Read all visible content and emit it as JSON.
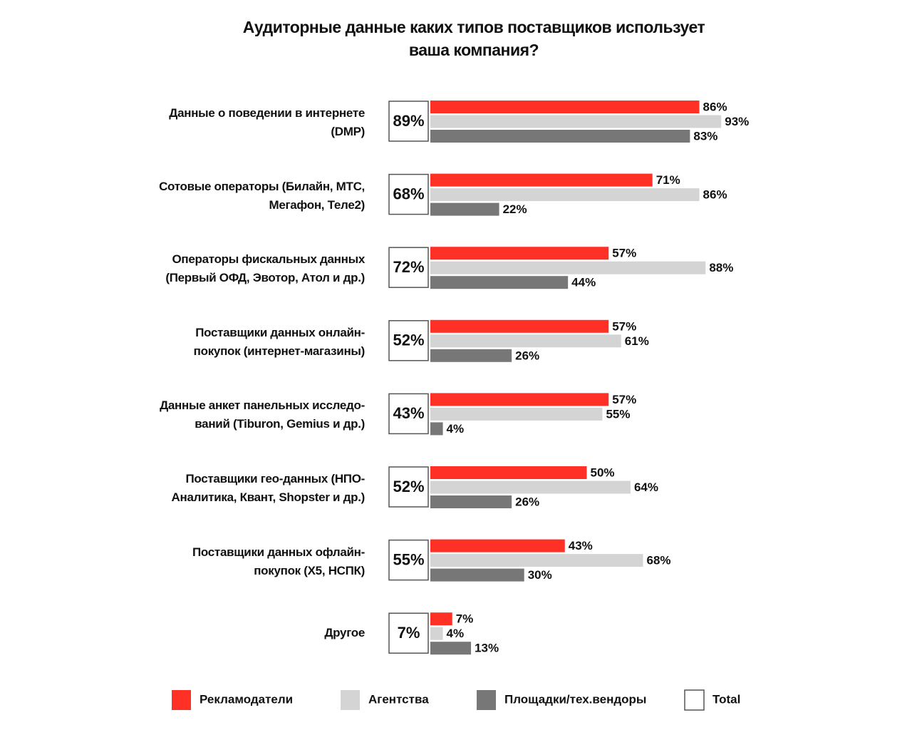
{
  "chart_data": {
    "type": "grouped-hbar",
    "title": "Аудиторные данные каких типов поставщиков использует\nваша компания?",
    "categories": [
      "Данные о поведении в интернете\n(DMP)",
      "Сотовые операторы (Билайн, МТС,\nМегафон, Теле2)",
      "Операторы фискальных данных\n(Первый ОФД, Эвотор, Атол и др.)",
      "Поставщики данных онлайн-\nпокупок (интернет-магазины)",
      "Данные анкет панельных исследо-\nваний (Tiburon, Gemius и др.)",
      "Поставщики гео-данных (НПО-\nАналитика, Квант, Shopster и др.)",
      "Поставщики данных офлайн-\nпокупок (Х5, НСПК)",
      "Другое"
    ],
    "series": [
      {
        "name": "Рекламодатели",
        "color": "#ff3126",
        "values": [
          86,
          71,
          57,
          57,
          57,
          50,
          43,
          7
        ],
        "value_labels": [
          "86%",
          "71%",
          "57%",
          "57%",
          "57%",
          "50%",
          "43%",
          "7%"
        ]
      },
      {
        "name": "Агентства",
        "color": "#d4d4d4",
        "values": [
          93,
          86,
          88,
          61,
          55,
          64,
          68,
          4
        ],
        "value_labels": [
          "93%",
          "86%",
          "88%",
          "61%",
          "55%",
          "64%",
          "68%",
          "4%"
        ]
      },
      {
        "name": "Площадки/тех.вендоры",
        "color": "#777777",
        "values": [
          83,
          22,
          44,
          26,
          4,
          26,
          30,
          13
        ],
        "value_labels": [
          "83%",
          "22%",
          "44%",
          "26%",
          "4%",
          "26%",
          "30%",
          "13%"
        ]
      }
    ],
    "total": {
      "name": "Total",
      "values": [
        89,
        68,
        72,
        52,
        43,
        52,
        55,
        7
      ],
      "value_labels": [
        "89%",
        "68%",
        "72%",
        "52%",
        "43%",
        "52%",
        "55%",
        "7%"
      ]
    }
  }
}
